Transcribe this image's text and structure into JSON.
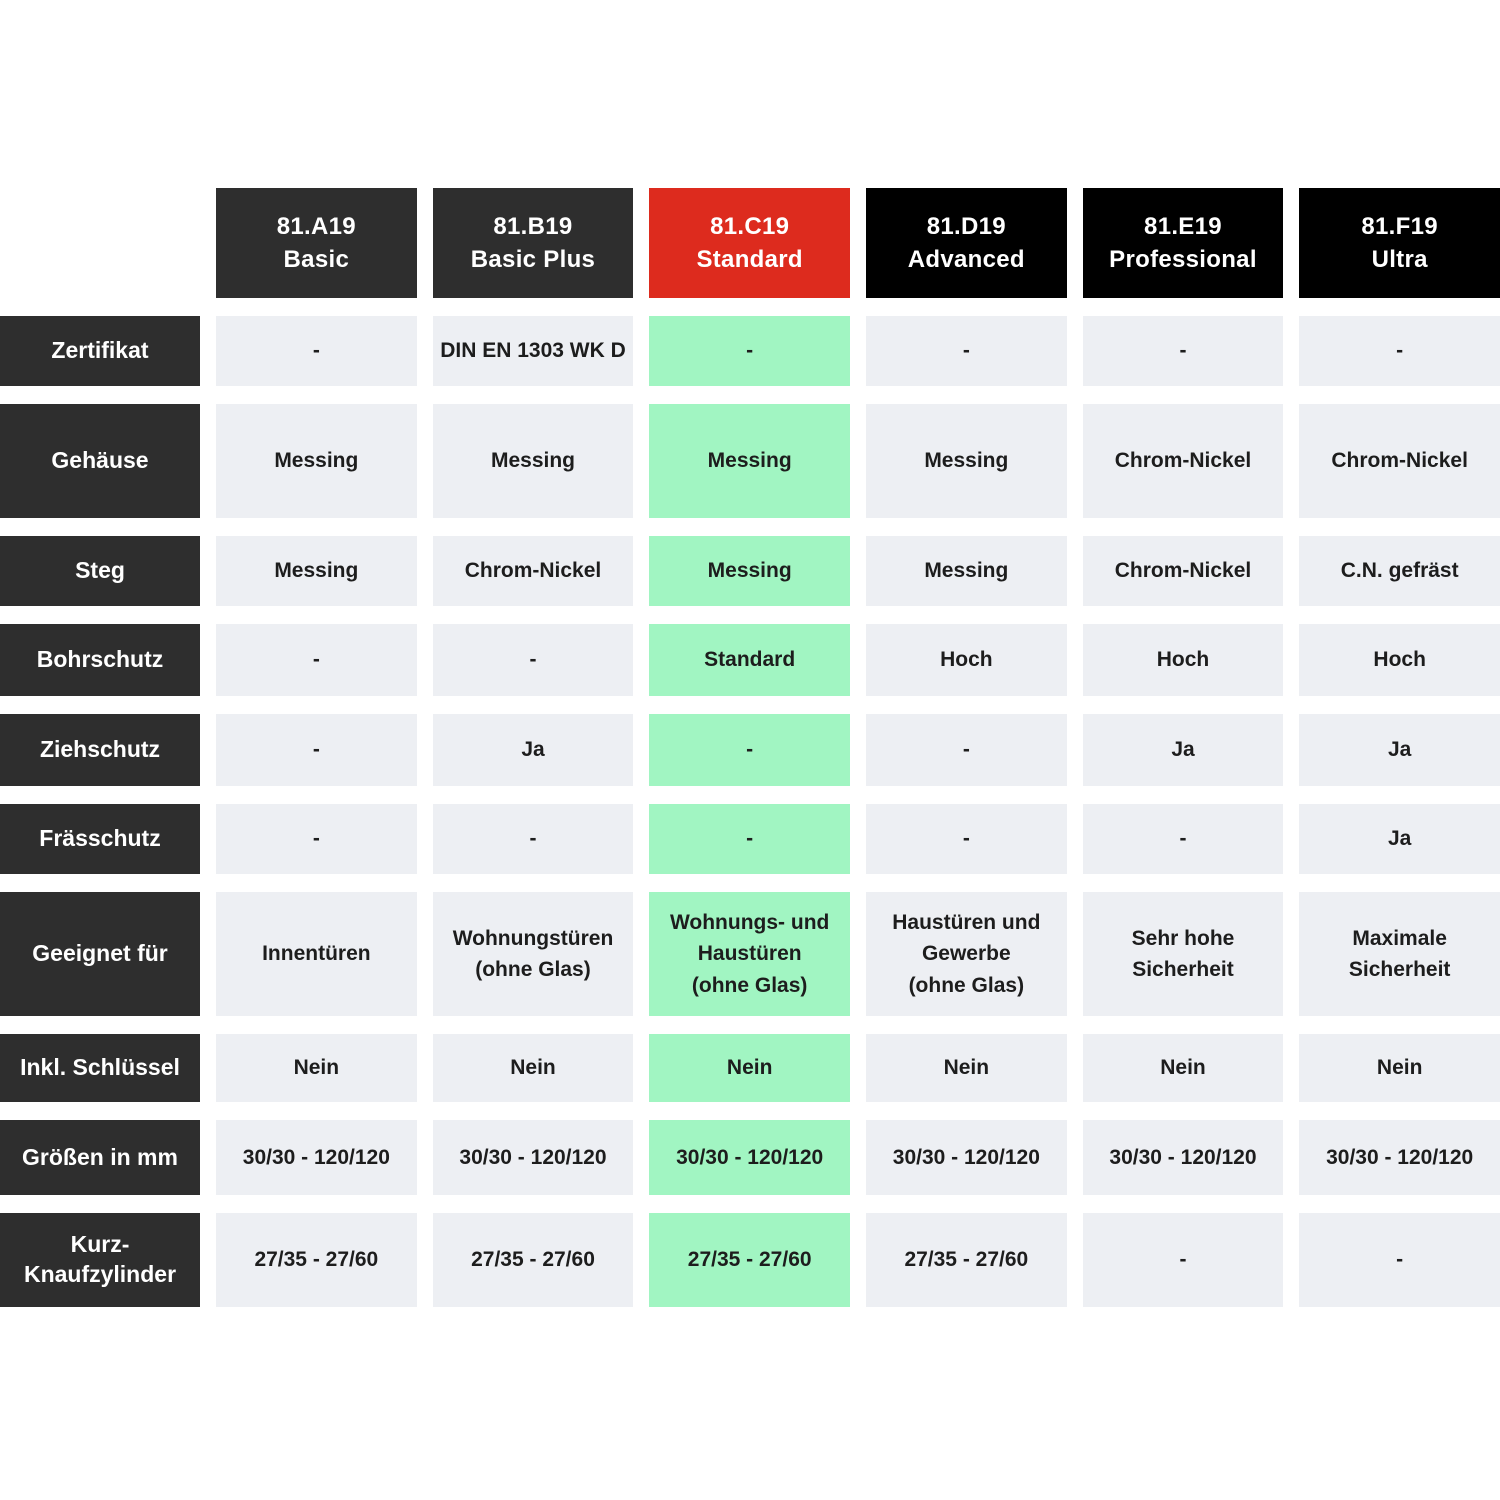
{
  "colors": {
    "page_bg": "#ffffff",
    "row_label_bg": "#2e2e2e",
    "header_charcoal": "#2e2e2e",
    "header_black": "#000000",
    "accent_red": "#dd2b1e",
    "cell_bg": "#edeff3",
    "highlight_green": "#a1f5c2",
    "cell_text": "#1d1d1d",
    "header_text": "#ffffff"
  },
  "chart_data": {
    "type": "table",
    "columns": [
      {
        "model": "81.A19",
        "tier": "Basic",
        "header_bg": "#2e2e2e",
        "highlight": false
      },
      {
        "model": "81.B19",
        "tier": "Basic Plus",
        "header_bg": "#2e2e2e",
        "highlight": false
      },
      {
        "model": "81.C19",
        "tier": "Standard",
        "header_bg": "#dd2b1e",
        "highlight": true
      },
      {
        "model": "81.D19",
        "tier": "Advanced",
        "header_bg": "#000000",
        "highlight": false
      },
      {
        "model": "81.E19",
        "tier": "Professional",
        "header_bg": "#000000",
        "highlight": false
      },
      {
        "model": "81.F19",
        "tier": "Ultra",
        "header_bg": "#000000",
        "highlight": false
      }
    ],
    "rows": [
      {
        "label": "Zertifikat",
        "values": [
          "-",
          "DIN EN 1303 WK D",
          "-",
          "-",
          "-",
          "-"
        ]
      },
      {
        "label": "Gehäuse",
        "values": [
          "Messing",
          "Messing",
          "Messing",
          "Messing",
          "Chrom-Nickel",
          "Chrom-Nickel"
        ]
      },
      {
        "label": "Steg",
        "values": [
          "Messing",
          "Chrom-Nickel",
          "Messing",
          "Messing",
          "Chrom-Nickel",
          "C.N. gefräst"
        ]
      },
      {
        "label": "Bohrschutz",
        "values": [
          "-",
          "-",
          "Standard",
          "Hoch",
          "Hoch",
          "Hoch"
        ]
      },
      {
        "label": "Ziehschutz",
        "values": [
          "-",
          "Ja",
          "-",
          "-",
          "Ja",
          "Ja"
        ]
      },
      {
        "label": "Frässchutz",
        "values": [
          "-",
          "-",
          "-",
          "-",
          "-",
          "Ja"
        ]
      },
      {
        "label": "Geeignet für",
        "values": [
          "Innentüren",
          "Wohnungstüren\n(ohne Glas)",
          "Wohnungs- und\nHaustüren\n(ohne Glas)",
          "Haustüren und\nGewerbe\n(ohne Glas)",
          "Sehr hohe\nSicherheit",
          "Maximale\nSicherheit"
        ]
      },
      {
        "label": "Inkl. Schlüssel",
        "values": [
          "Nein",
          "Nein",
          "Nein",
          "Nein",
          "Nein",
          "Nein"
        ]
      },
      {
        "label": "Größen in mm",
        "values": [
          "30/30 - 120/120",
          "30/30 - 120/120",
          "30/30 - 120/120",
          "30/30 - 120/120",
          "30/30 - 120/120",
          "30/30 - 120/120"
        ]
      },
      {
        "label": "Kurz-\nKnaufzylinder",
        "values": [
          "27/35 - 27/60",
          "27/35 - 27/60",
          "27/35 - 27/60",
          "27/35 - 27/60",
          "-",
          "-"
        ]
      }
    ]
  }
}
